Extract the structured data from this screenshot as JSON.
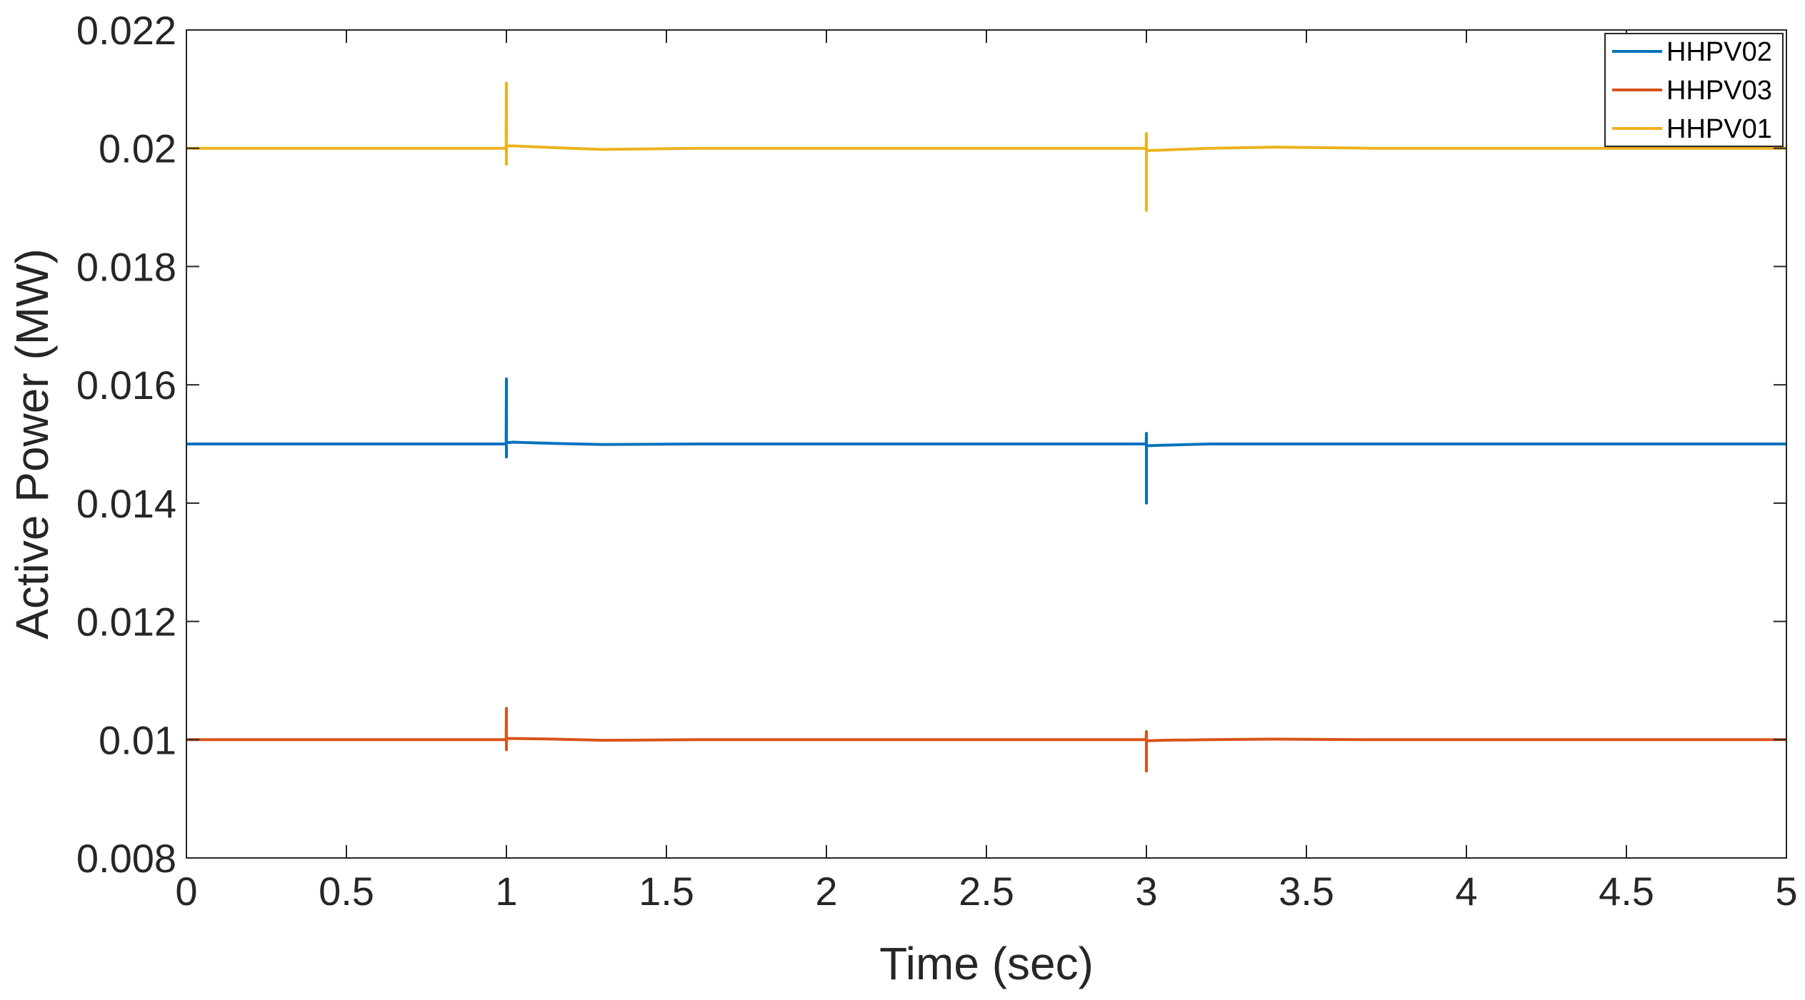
{
  "chart_data": {
    "type": "line",
    "title": "",
    "xlabel": "Time (sec)",
    "ylabel": "Active Power (MW)",
    "xlim": [
      0,
      5
    ],
    "ylim": [
      0.008,
      0.022
    ],
    "xticks": [
      0,
      0.5,
      1,
      1.5,
      2,
      2.5,
      3,
      3.5,
      4,
      4.5,
      5
    ],
    "xtick_labels": [
      "0",
      "0.5",
      "1",
      "1.5",
      "2",
      "2.5",
      "3",
      "3.5",
      "4",
      "4.5",
      "5"
    ],
    "yticks": [
      0.008,
      0.01,
      0.012,
      0.014,
      0.016,
      0.018,
      0.02,
      0.022
    ],
    "ytick_labels": [
      "0.008",
      "0.01",
      "0.012",
      "0.014",
      "0.016",
      "0.018",
      "0.02",
      "0.022"
    ],
    "grid": false,
    "legend_position": "top-right",
    "series": [
      {
        "name": "HHPV02",
        "color": "#0072BD",
        "x": [
          0,
          0.999,
          1.0,
          1.0,
          1.0,
          1.001,
          1.02,
          1.15,
          1.3,
          1.6,
          2.0,
          2.5,
          2.999,
          3.0,
          3.0,
          3.0,
          3.001,
          3.05,
          3.2,
          3.4,
          3.7,
          4.0,
          4.5,
          5.0
        ],
        "y": [
          0.015,
          0.015,
          0.0161,
          0.01478,
          0.01503,
          0.01502,
          0.01503,
          0.01501,
          0.01499,
          0.015,
          0.015,
          0.015,
          0.015,
          0.01518,
          0.014,
          0.01497,
          0.01497,
          0.01498,
          0.015,
          0.015,
          0.015,
          0.015,
          0.015,
          0.015
        ]
      },
      {
        "name": "HHPV03",
        "color": "#D95319",
        "x": [
          0,
          0.999,
          1.0,
          1.0,
          1.0,
          1.001,
          1.02,
          1.15,
          1.3,
          1.6,
          2.0,
          2.5,
          2.999,
          3.0,
          3.0,
          3.0,
          3.001,
          3.05,
          3.2,
          3.4,
          3.7,
          4.0,
          4.5,
          5.0
        ],
        "y": [
          0.01,
          0.01,
          0.01053,
          0.00983,
          0.01002,
          0.01002,
          0.01002,
          0.01001,
          0.00999,
          0.01,
          0.01,
          0.01,
          0.01,
          0.01014,
          0.00947,
          0.00998,
          0.00998,
          0.00999,
          0.01,
          0.01001,
          0.01,
          0.01,
          0.01,
          0.01
        ]
      },
      {
        "name": "HHPV01",
        "color": "#EDB120",
        "x": [
          0,
          0.999,
          1.0,
          1.0,
          1.0,
          1.001,
          1.02,
          1.15,
          1.3,
          1.6,
          2.0,
          2.5,
          2.999,
          3.0,
          3.0,
          3.0,
          3.001,
          3.05,
          3.2,
          3.4,
          3.7,
          4.0,
          4.5,
          5.0
        ],
        "y": [
          0.02,
          0.02,
          0.0211,
          0.01973,
          0.02005,
          0.02004,
          0.02004,
          0.02001,
          0.01998,
          0.02,
          0.02,
          0.02,
          0.02,
          0.02025,
          0.01895,
          0.01995,
          0.01996,
          0.01997,
          0.02,
          0.02002,
          0.02,
          0.02,
          0.02,
          0.02
        ]
      }
    ]
  }
}
